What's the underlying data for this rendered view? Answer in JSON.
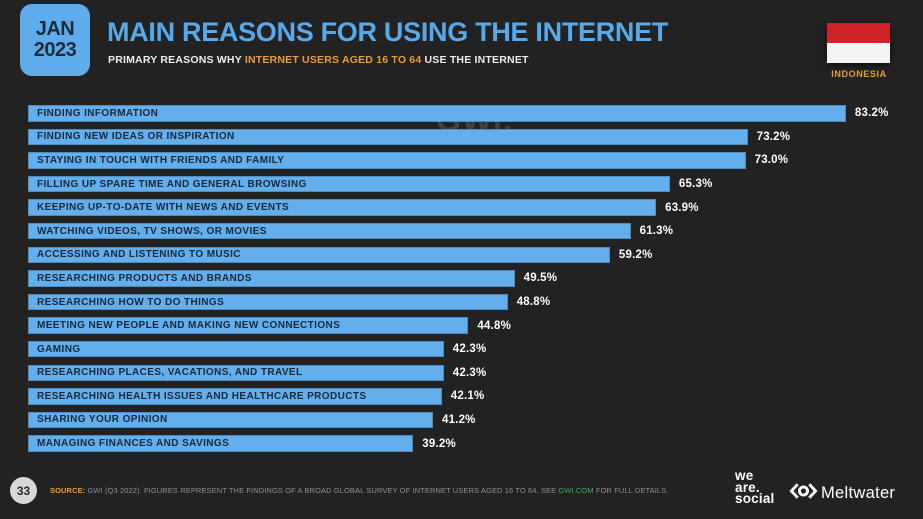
{
  "header": {
    "badge_month": "JAN",
    "badge_year": "2023",
    "title": "MAIN REASONS FOR USING THE INTERNET",
    "subtitle_prefix": "PRIMARY REASONS WHY ",
    "subtitle_highlight": "INTERNET USERS AGED 16 TO 64",
    "subtitle_suffix": " USE THE INTERNET",
    "country": "INDONESIA"
  },
  "watermark": "GWI.",
  "chart_data": {
    "type": "bar",
    "orientation": "horizontal",
    "title": "MAIN REASONS FOR USING THE INTERNET",
    "unit": "%",
    "xlim": [
      0,
      85
    ],
    "grid": false,
    "legend": false,
    "categories": [
      "FINDING INFORMATION",
      "FINDING NEW IDEAS OR INSPIRATION",
      "STAYING IN TOUCH WITH FRIENDS AND FAMILY",
      "FILLING UP SPARE TIME AND GENERAL BROWSING",
      "KEEPING UP-TO-DATE WITH NEWS AND EVENTS",
      "WATCHING VIDEOS, TV SHOWS, OR MOVIES",
      "ACCESSING AND LISTENING TO MUSIC",
      "RESEARCHING PRODUCTS AND BRANDS",
      "RESEARCHING HOW TO DO THINGS",
      "MEETING NEW PEOPLE AND MAKING NEW CONNECTIONS",
      "GAMING",
      "RESEARCHING PLACES, VACATIONS, AND TRAVEL",
      "RESEARCHING HEALTH ISSUES AND HEALTHCARE PRODUCTS",
      "SHARING YOUR OPINION",
      "MANAGING FINANCES AND SAVINGS"
    ],
    "values": [
      83.2,
      73.2,
      73.0,
      65.3,
      63.9,
      61.3,
      59.2,
      49.5,
      48.8,
      44.8,
      42.3,
      42.3,
      42.1,
      41.2,
      39.2
    ],
    "value_labels": [
      "83.2%",
      "73.2%",
      "73.0%",
      "65.3%",
      "63.9%",
      "61.3%",
      "59.2%",
      "49.5%",
      "48.8%",
      "44.8%",
      "42.3%",
      "42.3%",
      "42.1%",
      "41.2%",
      "39.2%"
    ]
  },
  "footer": {
    "page_number": "33",
    "source_label": "SOURCE:",
    "source_pre": " GWI (Q3 2022). FIGURES REPRESENT THE FINDINGS OF A BROAD GLOBAL SURVEY OF INTERNET USERS AGED 16 TO 64. SEE ",
    "source_link": "GWI.COM",
    "source_post": " FOR FULL DETAILS.",
    "wearesocial": {
      "l1": "we",
      "l2": "are.",
      "l3": "social"
    },
    "meltwater": "Meltwater"
  },
  "colors": {
    "background": "#212221",
    "accent_blue": "#63AEEB",
    "accent_orange": "#E79E37",
    "link_green": "#3FAE5C",
    "bar_text": "#15293E",
    "value_text": "#FFFFFF",
    "flag_red": "#CE2128"
  }
}
